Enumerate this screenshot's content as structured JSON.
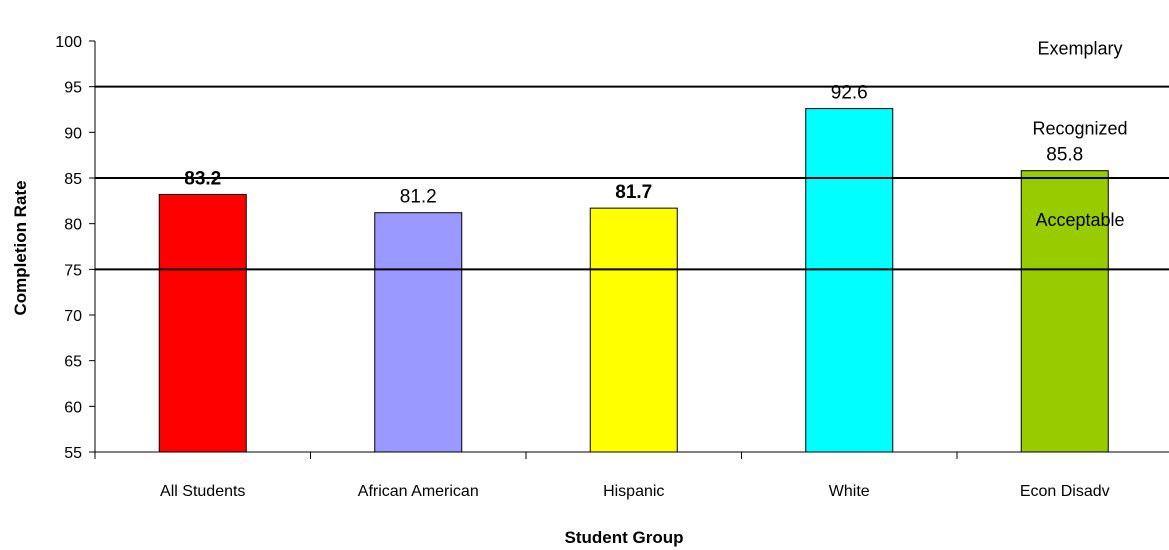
{
  "chart_data": {
    "type": "bar",
    "categories": [
      "All Students",
      "African American",
      "Hispanic",
      "White",
      "Econ Disadv"
    ],
    "values": [
      83.2,
      81.2,
      81.7,
      92.6,
      85.8
    ],
    "data_labels": [
      "83.2",
      "81.2",
      "81.7",
      "92.6",
      "85.8"
    ],
    "data_label_bold": [
      true,
      false,
      true,
      false,
      false
    ],
    "bar_colors": [
      "#ff0000",
      "#9999ff",
      "#ffff00",
      "#00ffff",
      "#99cc00"
    ],
    "xlabel": "Student Group",
    "ylabel": "Completion Rate",
    "ylim": [
      55,
      100
    ],
    "yticks": [
      55,
      60,
      65,
      70,
      75,
      80,
      85,
      90,
      95,
      100
    ],
    "reference_lines": [
      75,
      85,
      95
    ],
    "band_labels": [
      {
        "text": "Exemplary",
        "value": 99.2
      },
      {
        "text": "Recognized",
        "value": 90.4
      },
      {
        "text": "Acceptable",
        "value": 80.4
      }
    ],
    "grid": false,
    "legend": "none"
  }
}
